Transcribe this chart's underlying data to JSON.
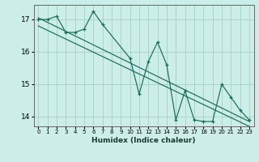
{
  "title": "",
  "xlabel": "Humidex (Indice chaleur)",
  "ylabel": "",
  "bg_color": "#cceee8",
  "grid_color": "#aad4cc",
  "line_color": "#1a6b5a",
  "xlim": [
    -0.5,
    23.5
  ],
  "ylim": [
    13.7,
    17.45
  ],
  "yticks": [
    14,
    15,
    16,
    17
  ],
  "xticks": [
    0,
    1,
    2,
    3,
    4,
    5,
    6,
    7,
    8,
    9,
    10,
    11,
    12,
    13,
    14,
    15,
    16,
    17,
    18,
    19,
    20,
    21,
    22,
    23
  ],
  "series1_x": [
    0,
    1,
    2,
    3,
    4,
    5,
    6,
    7,
    10,
    11,
    12,
    13,
    14,
    15,
    16,
    17,
    18,
    19,
    20,
    21,
    22,
    23
  ],
  "series1_y": [
    17.0,
    17.0,
    17.1,
    16.6,
    16.6,
    16.7,
    17.25,
    16.85,
    15.8,
    14.7,
    15.7,
    16.3,
    15.6,
    13.9,
    14.8,
    13.9,
    13.85,
    13.85,
    15.0,
    14.6,
    14.2,
    13.9
  ],
  "line1_x": [
    0,
    23
  ],
  "line1_y": [
    17.05,
    13.85
  ],
  "line2_x": [
    0,
    23
  ],
  "line2_y": [
    16.8,
    13.7
  ],
  "figsize": [
    3.2,
    2.0
  ],
  "dpi": 100
}
